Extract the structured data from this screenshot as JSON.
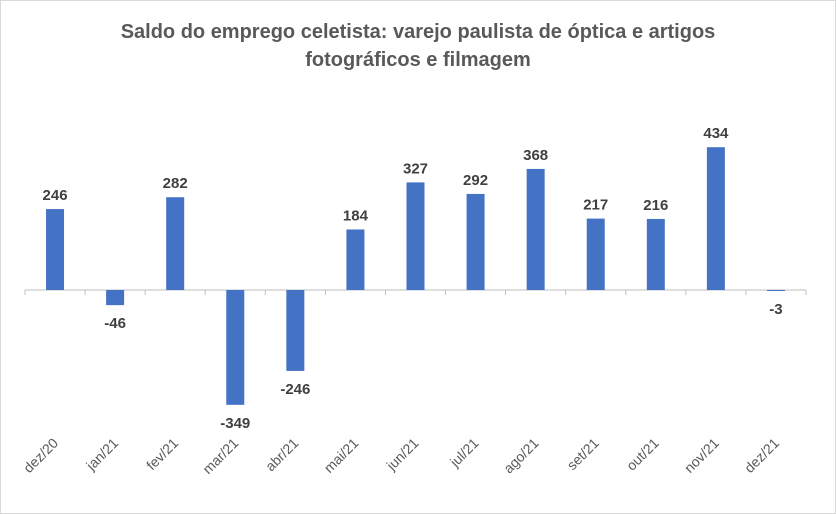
{
  "chart_data": {
    "type": "bar",
    "title_lines": [
      "Saldo do emprego celetista: varejo paulista de óptica e artigos",
      "fotográficos e filmagem"
    ],
    "categories": [
      "dez/20",
      "jan/21",
      "fev/21",
      "mar/21",
      "abr/21",
      "mai/21",
      "jun/21",
      "jul/21",
      "ago/21",
      "set/21",
      "out/21",
      "nov/21",
      "dez/21"
    ],
    "values": [
      246,
      -46,
      282,
      -349,
      -246,
      184,
      327,
      292,
      368,
      217,
      216,
      434,
      -3
    ],
    "data_labels": [
      "246",
      "-46",
      "282",
      "-349",
      "-246",
      "184",
      "327",
      "292",
      "368",
      "217",
      "216",
      "434",
      "-3"
    ],
    "xlabel": "",
    "ylabel": "",
    "ylim": [
      -400,
      500
    ],
    "grid": false,
    "legend": "none",
    "colors": {
      "bar": "#4472c4",
      "axis": "#bfbfbf",
      "label": "#404040",
      "tick": "#595959",
      "title": "#595959"
    }
  }
}
